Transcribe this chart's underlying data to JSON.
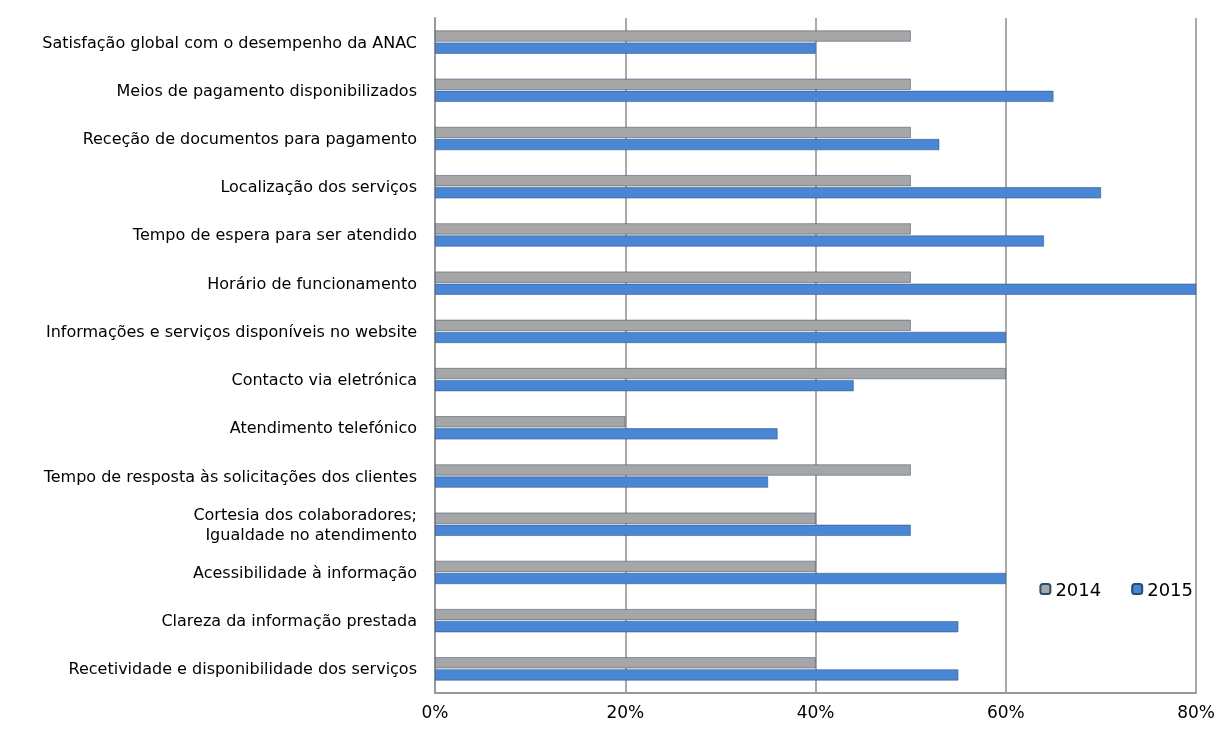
{
  "chart_data": {
    "type": "bar",
    "orientation": "horizontal",
    "categories": [
      "Satisfação global com o desempenho da ANAC",
      "Meios de pagamento disponibilizados",
      "Receção de documentos para pagamento",
      "Localização dos serviços",
      "Tempo de espera para ser atendido",
      "Horário de funcionamento",
      "Informações e serviços disponíveis no website",
      "Contacto via eletrónica",
      "Atendimento telefónico",
      "Tempo de resposta às solicitações dos clientes",
      "Cortesia dos colaboradores;\nIgualdade no atendimento",
      "Acessibilidade à informação",
      "Clareza da informação prestada",
      "Recetividade e disponibilidade dos serviços"
    ],
    "series": [
      {
        "name": "2014",
        "color": "#a6a6a6",
        "values": [
          50,
          50,
          50,
          50,
          50,
          50,
          50,
          60,
          20,
          50,
          40,
          40,
          40,
          40
        ]
      },
      {
        "name": "2015",
        "color": "#4a86d6",
        "values": [
          40,
          65,
          53,
          70,
          64,
          80,
          60,
          44,
          36,
          35,
          50,
          60,
          55,
          55
        ]
      }
    ],
    "xlim": [
      0,
      80
    ],
    "xticks": [
      {
        "value": 0,
        "label": "0%"
      },
      {
        "value": 20,
        "label": "20%"
      },
      {
        "value": 40,
        "label": "40%"
      },
      {
        "value": 60,
        "label": "60%"
      },
      {
        "value": 80,
        "label": "80%"
      }
    ],
    "grid": "x",
    "legend": "bottom right"
  }
}
